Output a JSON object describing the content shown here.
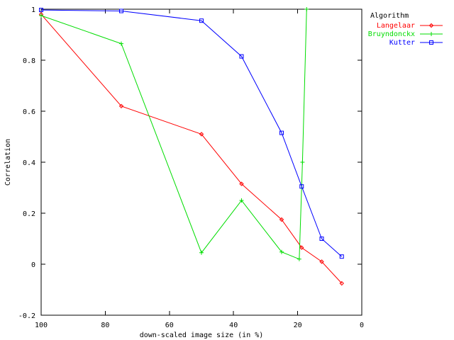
{
  "chart_data": {
    "type": "line",
    "xlabel": "down-scaled image size (in %)",
    "ylabel": "Correlation",
    "xlim": [
      100,
      0
    ],
    "ylim": [
      -0.2,
      1
    ],
    "x_reversed": true,
    "xticks": [
      "100",
      "80",
      "60",
      "40",
      "20",
      "0"
    ],
    "yticks": [
      "-0.2",
      "0",
      "0.2",
      "0.4",
      "0.6",
      "0.8",
      "1"
    ],
    "grid": false,
    "legend": {
      "title": "Algorithm",
      "placement": "top-right outside plot"
    },
    "series": [
      {
        "name": "Langelaar",
        "color": "#ff0000",
        "marker": "diamond",
        "x": [
          100,
          75,
          50,
          37.5,
          25,
          18.75,
          12.5,
          6.25
        ],
        "y": [
          0.98,
          0.62,
          0.51,
          0.315,
          0.175,
          0.065,
          0.01,
          -0.075
        ]
      },
      {
        "name": "Bruyndonckx",
        "color": "#00dd00",
        "marker": "plus",
        "x": [
          100,
          75,
          50,
          37.5,
          25,
          19.5,
          18.5,
          17.2
        ],
        "y": [
          0.975,
          0.865,
          0.045,
          0.25,
          0.048,
          0.02,
          0.4,
          1.0
        ]
      },
      {
        "name": "Kutter",
        "color": "#0000ff",
        "marker": "square",
        "x": [
          100,
          75,
          50,
          37.5,
          25,
          18.75,
          12.5,
          6.25
        ],
        "y": [
          0.997,
          0.993,
          0.955,
          0.815,
          0.515,
          0.305,
          0.1,
          0.03
        ]
      }
    ]
  }
}
